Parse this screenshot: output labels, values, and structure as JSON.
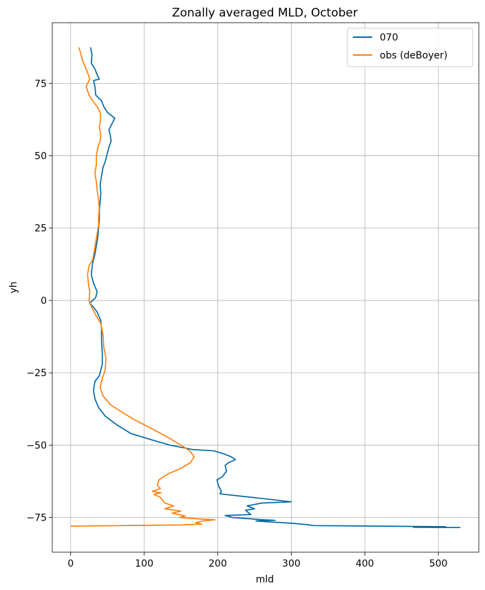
{
  "chart_data": {
    "type": "line",
    "title": "Zonally averaged MLD, October",
    "xlabel": "mld",
    "ylabel": "yh",
    "xlim": [
      -25,
      555
    ],
    "ylim": [
      -87,
      96
    ],
    "xticks": [
      0,
      100,
      200,
      300,
      400,
      500
    ],
    "xtick_labels": [
      "0",
      "100",
      "200",
      "300",
      "400",
      "500"
    ],
    "yticks": [
      -75,
      -50,
      -25,
      0,
      25,
      50,
      75
    ],
    "ytick_labels": [
      "−75",
      "−50",
      "−25",
      "0",
      "25",
      "50",
      "75"
    ],
    "grid": true,
    "legend_position": "top-right",
    "series": [
      {
        "name": "070",
        "color": "#0068a5",
        "points": [
          [
            27,
            87.5
          ],
          [
            29,
            85
          ],
          [
            28,
            82
          ],
          [
            33,
            80
          ],
          [
            36,
            78
          ],
          [
            39,
            76.5
          ],
          [
            31,
            76
          ],
          [
            33,
            74
          ],
          [
            34,
            71
          ],
          [
            42,
            69
          ],
          [
            45,
            67
          ],
          [
            50,
            65
          ],
          [
            60,
            63
          ],
          [
            56,
            61
          ],
          [
            52,
            59
          ],
          [
            54,
            57
          ],
          [
            55,
            55
          ],
          [
            52,
            53
          ],
          [
            50,
            51
          ],
          [
            47,
            48
          ],
          [
            44,
            46
          ],
          [
            42,
            43
          ],
          [
            40,
            40
          ],
          [
            41,
            37
          ],
          [
            40,
            34
          ],
          [
            39,
            31
          ],
          [
            39,
            28
          ],
          [
            38,
            25
          ],
          [
            37,
            22
          ],
          [
            35,
            19
          ],
          [
            33,
            16
          ],
          [
            30,
            13
          ],
          [
            29,
            11
          ],
          [
            28,
            9
          ],
          [
            31,
            6
          ],
          [
            36,
            3
          ],
          [
            34,
            1
          ],
          [
            30,
            0
          ],
          [
            26,
            -1
          ],
          [
            30,
            -2
          ],
          [
            36,
            -4
          ],
          [
            41,
            -7
          ],
          [
            42,
            -10
          ],
          [
            42,
            -14
          ],
          [
            43,
            -18
          ],
          [
            43,
            -22
          ],
          [
            39,
            -26
          ],
          [
            33,
            -28
          ],
          [
            31,
            -31
          ],
          [
            33,
            -34
          ],
          [
            38,
            -37
          ],
          [
            47,
            -40
          ],
          [
            63,
            -43
          ],
          [
            82,
            -46
          ],
          [
            108,
            -48
          ],
          [
            135,
            -50
          ],
          [
            165,
            -51.5
          ],
          [
            195,
            -52
          ],
          [
            208,
            -53
          ],
          [
            218,
            -54
          ],
          [
            224,
            -55
          ],
          [
            215,
            -56
          ],
          [
            210,
            -57
          ],
          [
            212,
            -59
          ],
          [
            206,
            -61
          ],
          [
            199,
            -62
          ],
          [
            201,
            -64
          ],
          [
            205,
            -66
          ],
          [
            203,
            -66.8
          ],
          [
            208,
            -67
          ],
          [
            245,
            -68
          ],
          [
            280,
            -69
          ],
          [
            300,
            -69.6
          ],
          [
            260,
            -70
          ],
          [
            240,
            -71
          ],
          [
            250,
            -72
          ],
          [
            238,
            -72.5
          ],
          [
            240,
            -73
          ],
          [
            245,
            -74
          ],
          [
            210,
            -74.3
          ],
          [
            220,
            -75
          ],
          [
            262,
            -75.8
          ],
          [
            278,
            -76
          ],
          [
            252,
            -76.2
          ],
          [
            268,
            -76.5
          ],
          [
            300,
            -77
          ],
          [
            322,
            -77.5
          ],
          [
            330,
            -77.8
          ],
          [
            420,
            -78
          ],
          [
            510,
            -78.2
          ],
          [
            466,
            -78.4
          ],
          [
            530,
            -78.5
          ]
        ]
      },
      {
        "name": "obs (deBoyer)",
        "color": "#ff7f0e",
        "points": [
          [
            11,
            87.5
          ],
          [
            13,
            86
          ],
          [
            16,
            83
          ],
          [
            21,
            80
          ],
          [
            24,
            78
          ],
          [
            26,
            76.5
          ],
          [
            21,
            74
          ],
          [
            25,
            71
          ],
          [
            30,
            69
          ],
          [
            36,
            67
          ],
          [
            40,
            65
          ],
          [
            41,
            63
          ],
          [
            39,
            60
          ],
          [
            41,
            57
          ],
          [
            40,
            55
          ],
          [
            37,
            53
          ],
          [
            35,
            50
          ],
          [
            35,
            47
          ],
          [
            33,
            44
          ],
          [
            35,
            41
          ],
          [
            36,
            38
          ],
          [
            38,
            35
          ],
          [
            39,
            32
          ],
          [
            38,
            29
          ],
          [
            38,
            26
          ],
          [
            36,
            23
          ],
          [
            34,
            20
          ],
          [
            32,
            17
          ],
          [
            30,
            14
          ],
          [
            25,
            12
          ],
          [
            23,
            9
          ],
          [
            24,
            6
          ],
          [
            26,
            3
          ],
          [
            25,
            0
          ],
          [
            28,
            -2
          ],
          [
            34,
            -5
          ],
          [
            41,
            -8
          ],
          [
            44,
            -12
          ],
          [
            45,
            -16
          ],
          [
            48,
            -20
          ],
          [
            47,
            -24
          ],
          [
            43,
            -27
          ],
          [
            40,
            -30
          ],
          [
            44,
            -33
          ],
          [
            54,
            -36
          ],
          [
            66,
            -38
          ],
          [
            85,
            -41
          ],
          [
            108,
            -44
          ],
          [
            130,
            -47
          ],
          [
            150,
            -50
          ],
          [
            162,
            -52
          ],
          [
            168,
            -54
          ],
          [
            163,
            -56
          ],
          [
            150,
            -58
          ],
          [
            132,
            -60
          ],
          [
            120,
            -62
          ],
          [
            118,
            -64
          ],
          [
            122,
            -65
          ],
          [
            111,
            -66
          ],
          [
            123,
            -66.5
          ],
          [
            113,
            -67
          ],
          [
            122,
            -68
          ],
          [
            128,
            -70
          ],
          [
            140,
            -71
          ],
          [
            128,
            -72
          ],
          [
            150,
            -72.8
          ],
          [
            138,
            -73.5
          ],
          [
            156,
            -74.5
          ],
          [
            148,
            -75
          ],
          [
            174,
            -75.5
          ],
          [
            196,
            -75.8
          ],
          [
            180,
            -76.2
          ],
          [
            170,
            -76.8
          ],
          [
            178,
            -77.3
          ],
          [
            150,
            -77.6
          ],
          [
            0,
            -78
          ]
        ]
      }
    ]
  }
}
